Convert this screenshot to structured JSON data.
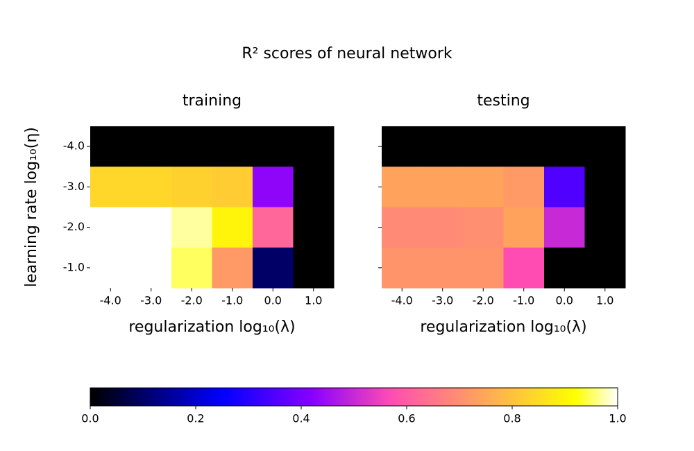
{
  "suptitle": "R² scores of neural network",
  "colorbar": {
    "colormap": "gnuplot2",
    "clim": [
      0,
      1
    ],
    "ticks": [
      {
        "value": 0,
        "label": "0.0"
      },
      {
        "value": 0.2,
        "label": "0.2"
      },
      {
        "value": 0.4,
        "label": "0.4"
      },
      {
        "value": 0.6,
        "label": "0.6"
      },
      {
        "value": 0.8,
        "label": "0.8"
      },
      {
        "value": 1,
        "label": "1.0"
      }
    ]
  },
  "chart_data": [
    {
      "type": "heatmap",
      "title": "training",
      "xlabel": "regularization log₁₀(λ)",
      "ylabel": "learning rate log₁₀(η)",
      "x": [
        -4,
        -3,
        -2,
        -1,
        0,
        1
      ],
      "y": [
        -4,
        -3,
        -2,
        -1
      ],
      "values": [
        [
          0,
          0,
          0,
          0,
          0,
          0
        ],
        [
          0.84,
          0.84,
          0.83,
          0.82,
          0.43,
          0
        ],
        [
          1.0,
          1.0,
          0.97,
          0.9,
          0.62,
          0
        ],
        [
          1.0,
          1.0,
          0.95,
          0.72,
          0.1,
          0
        ]
      ],
      "xlim": [
        -4.5,
        1.5
      ],
      "ylim": [
        -0.5,
        -4.5
      ],
      "xticks": [
        {
          "value": -4,
          "label": "-4.0"
        },
        {
          "value": -3,
          "label": "-3.0"
        },
        {
          "value": -2,
          "label": "-2.0"
        },
        {
          "value": -1,
          "label": "-1.0"
        },
        {
          "value": 0,
          "label": "0.0"
        },
        {
          "value": 1,
          "label": "1.0"
        }
      ],
      "yticks": [
        {
          "value": -4,
          "label": "-4.0"
        },
        {
          "value": -3,
          "label": "-3.0"
        },
        {
          "value": -2,
          "label": "-2.0"
        },
        {
          "value": -1,
          "label": "-1.0"
        }
      ]
    },
    {
      "type": "heatmap",
      "title": "testing",
      "xlabel": "regularization log₁₀(λ)",
      "x": [
        -4,
        -3,
        -2,
        -1,
        0,
        1
      ],
      "y": [
        -4,
        -3,
        -2,
        -1
      ],
      "values": [
        [
          0,
          0,
          0,
          0,
          0,
          0
        ],
        [
          0.74,
          0.74,
          0.74,
          0.72,
          0.35,
          0
        ],
        [
          0.69,
          0.69,
          0.7,
          0.74,
          0.5,
          0
        ],
        [
          0.71,
          0.71,
          0.71,
          0.57,
          0,
          0
        ]
      ],
      "xlim": [
        -4.5,
        1.5
      ],
      "ylim": [
        -0.5,
        -4.5
      ],
      "xticks": [
        {
          "value": -4,
          "label": "-4.0"
        },
        {
          "value": -3,
          "label": "-3.0"
        },
        {
          "value": -2,
          "label": "-2.0"
        },
        {
          "value": -1,
          "label": "-1.0"
        },
        {
          "value": 0,
          "label": "0.0"
        },
        {
          "value": 1,
          "label": "1.0"
        }
      ],
      "yticks": [
        -4,
        -3,
        -2,
        -1
      ]
    }
  ]
}
